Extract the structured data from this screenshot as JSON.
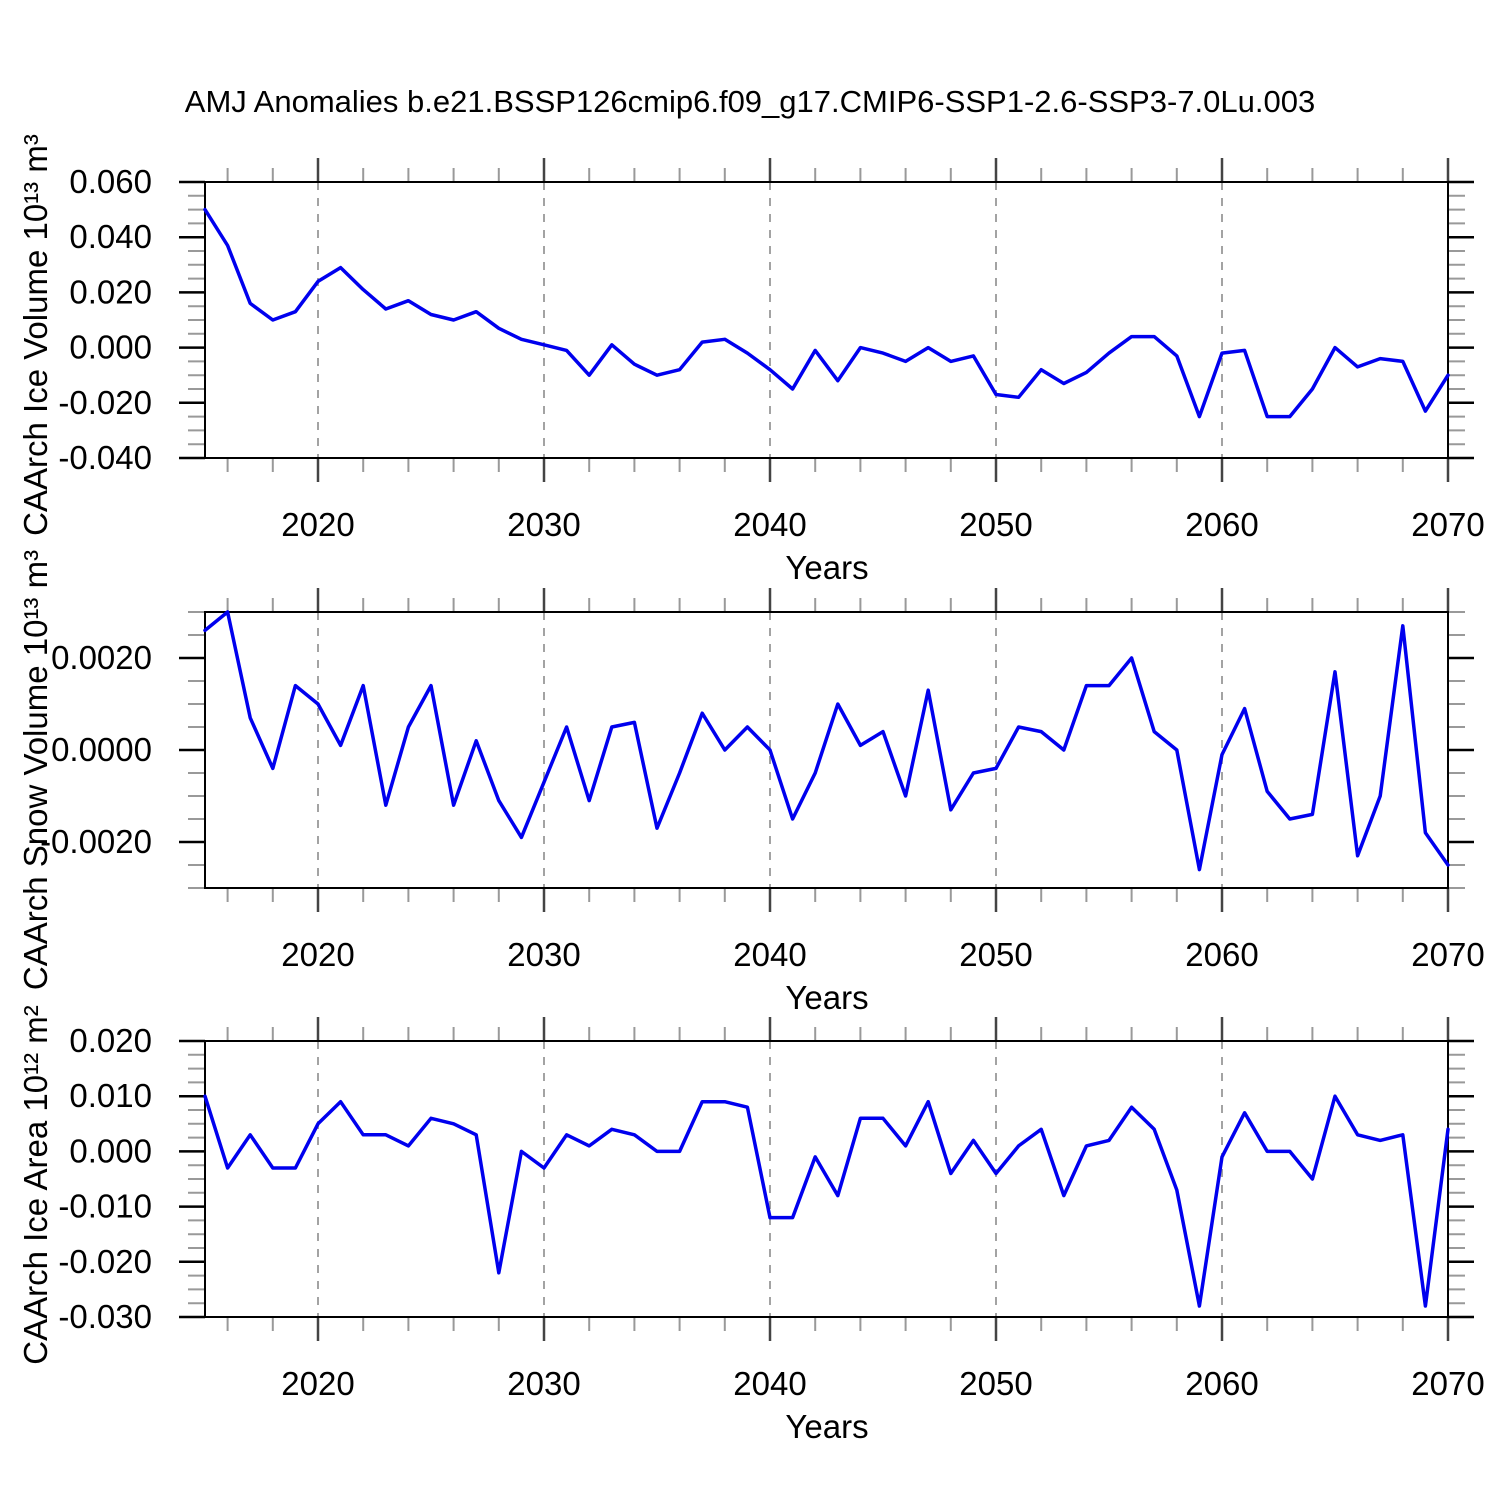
{
  "title": "AMJ Anomalies b.e21.BSSP126cmip6.f09_g17.CMIP6-SSP1-2.6-SSP3-7.0Lu.003",
  "colors": {
    "line": "#0000ee",
    "grid": "#999999",
    "minor_tick": "#999999",
    "major_tick_x": "#444444",
    "major_tick_y": "#000000",
    "frame": "#000000"
  },
  "chart_data": [
    {
      "type": "line",
      "ylabel": "CAArch Ice Volume 10¹³ m³",
      "xlabel": "Years",
      "xlim": [
        2015,
        2070
      ],
      "ylim": [
        -0.04,
        0.06
      ],
      "grid": "vertical-dashed-at-decades",
      "legend_position": "none",
      "x_major": [
        2020,
        2030,
        2040,
        2050,
        2060,
        2070
      ],
      "x_tick_labels": [
        "2020",
        "2030",
        "2040",
        "2050",
        "2060",
        "2070"
      ],
      "x_minor_step": 2,
      "grid_years": [
        2020,
        2030,
        2040,
        2050,
        2060
      ],
      "y_major": [
        0.06,
        0.04,
        0.02,
        0.0,
        -0.02,
        -0.04
      ],
      "y_tick_labels": [
        "0.060",
        "0.040",
        "0.020",
        "0.000",
        "-0.020",
        "-0.040"
      ],
      "y_minor_step": 0.005,
      "years": [
        2015,
        2016,
        2017,
        2018,
        2019,
        2020,
        2021,
        2022,
        2023,
        2024,
        2025,
        2026,
        2027,
        2028,
        2029,
        2030,
        2031,
        2032,
        2033,
        2034,
        2035,
        2036,
        2037,
        2038,
        2039,
        2040,
        2041,
        2042,
        2043,
        2044,
        2045,
        2046,
        2047,
        2048,
        2049,
        2050,
        2051,
        2052,
        2053,
        2054,
        2055,
        2056,
        2057,
        2058,
        2059,
        2060,
        2061,
        2062,
        2063,
        2064,
        2065,
        2066,
        2067,
        2068,
        2069,
        2070
      ],
      "values": [
        0.05,
        0.037,
        0.016,
        0.01,
        0.013,
        0.024,
        0.029,
        0.021,
        0.014,
        0.017,
        0.012,
        0.01,
        0.013,
        0.007,
        0.003,
        0.001,
        -0.001,
        -0.01,
        0.001,
        -0.006,
        -0.01,
        -0.008,
        0.002,
        0.003,
        -0.002,
        -0.008,
        -0.015,
        -0.001,
        -0.012,
        0.0,
        -0.002,
        -0.005,
        0.0,
        -0.005,
        -0.003,
        -0.017,
        -0.018,
        -0.008,
        -0.013,
        -0.009,
        -0.002,
        0.004,
        0.004,
        -0.003,
        -0.025,
        -0.002,
        -0.001,
        -0.025,
        -0.025,
        -0.015,
        0.0,
        -0.007,
        -0.004,
        -0.005,
        -0.023,
        -0.01
      ]
    },
    {
      "type": "line",
      "ylabel": "CAArch Snow Volume 10¹³ m³",
      "xlabel": "Years",
      "xlim": [
        2015,
        2070
      ],
      "ylim": [
        -0.003,
        0.003
      ],
      "grid": "vertical-dashed-at-decades",
      "legend_position": "none",
      "x_major": [
        2020,
        2030,
        2040,
        2050,
        2060,
        2070
      ],
      "x_tick_labels": [
        "2020",
        "2030",
        "2040",
        "2050",
        "2060",
        "2070"
      ],
      "x_minor_step": 2,
      "grid_years": [
        2020,
        2030,
        2040,
        2050,
        2060
      ],
      "y_major": [
        0.002,
        0.0,
        -0.002
      ],
      "y_tick_labels": [
        "0.0020",
        "0.0000",
        "-0.0020"
      ],
      "y_minor_step": 0.0005,
      "years": [
        2015,
        2016,
        2017,
        2018,
        2019,
        2020,
        2021,
        2022,
        2023,
        2024,
        2025,
        2026,
        2027,
        2028,
        2029,
        2030,
        2031,
        2032,
        2033,
        2034,
        2035,
        2036,
        2037,
        2038,
        2039,
        2040,
        2041,
        2042,
        2043,
        2044,
        2045,
        2046,
        2047,
        2048,
        2049,
        2050,
        2051,
        2052,
        2053,
        2054,
        2055,
        2056,
        2057,
        2058,
        2059,
        2060,
        2061,
        2062,
        2063,
        2064,
        2065,
        2066,
        2067,
        2068,
        2069,
        2070
      ],
      "values": [
        0.0026,
        0.003,
        0.0007,
        -0.0004,
        0.0014,
        0.001,
        0.0001,
        0.0014,
        -0.0012,
        0.0005,
        0.0014,
        -0.0012,
        0.0002,
        -0.0011,
        -0.0019,
        -0.0007,
        0.0005,
        -0.0011,
        0.0005,
        0.0006,
        -0.0017,
        -0.0005,
        0.0008,
        0.0,
        0.0005,
        0.0,
        -0.0015,
        -0.0005,
        0.001,
        0.0001,
        0.0004,
        -0.001,
        0.0013,
        -0.0013,
        -0.0005,
        -0.0004,
        0.0005,
        0.0004,
        0.0,
        0.0014,
        0.0014,
        0.002,
        0.0004,
        0.0,
        -0.0026,
        -0.0001,
        0.0009,
        -0.0009,
        -0.0015,
        -0.0014,
        0.0017,
        -0.0023,
        -0.001,
        0.0027,
        -0.0018,
        -0.0025
      ]
    },
    {
      "type": "line",
      "ylabel": "CAArch Ice Area 10¹² m²",
      "xlabel": "Years",
      "xlim": [
        2015,
        2070
      ],
      "ylim": [
        -0.03,
        0.02
      ],
      "grid": "vertical-dashed-at-decades",
      "legend_position": "none",
      "x_major": [
        2020,
        2030,
        2040,
        2050,
        2060,
        2070
      ],
      "x_tick_labels": [
        "2020",
        "2030",
        "2040",
        "2050",
        "2060",
        "2070"
      ],
      "x_minor_step": 2,
      "grid_years": [
        2020,
        2030,
        2040,
        2050,
        2060
      ],
      "y_major": [
        0.02,
        0.01,
        0.0,
        -0.01,
        -0.02,
        -0.03
      ],
      "y_tick_labels": [
        "0.020",
        "0.010",
        "0.000",
        "-0.010",
        "-0.020",
        "-0.030"
      ],
      "y_minor_step": 0.0025,
      "years": [
        2015,
        2016,
        2017,
        2018,
        2019,
        2020,
        2021,
        2022,
        2023,
        2024,
        2025,
        2026,
        2027,
        2028,
        2029,
        2030,
        2031,
        2032,
        2033,
        2034,
        2035,
        2036,
        2037,
        2038,
        2039,
        2040,
        2041,
        2042,
        2043,
        2044,
        2045,
        2046,
        2047,
        2048,
        2049,
        2050,
        2051,
        2052,
        2053,
        2054,
        2055,
        2056,
        2057,
        2058,
        2059,
        2060,
        2061,
        2062,
        2063,
        2064,
        2065,
        2066,
        2067,
        2068,
        2069,
        2070
      ],
      "values": [
        0.01,
        -0.003,
        0.003,
        -0.003,
        -0.003,
        0.005,
        0.009,
        0.003,
        0.003,
        0.001,
        0.006,
        0.005,
        0.003,
        -0.022,
        0.0,
        -0.003,
        0.003,
        0.001,
        0.004,
        0.003,
        0.0,
        0.0,
        0.009,
        0.009,
        0.008,
        -0.012,
        -0.012,
        -0.001,
        -0.008,
        0.006,
        0.006,
        0.001,
        0.009,
        -0.004,
        0.002,
        -0.004,
        0.001,
        0.004,
        -0.008,
        0.001,
        0.002,
        0.008,
        0.004,
        -0.007,
        -0.028,
        -0.001,
        0.007,
        0.0,
        0.0,
        -0.005,
        0.01,
        0.003,
        0.002,
        0.003,
        -0.028,
        0.004
      ]
    }
  ]
}
